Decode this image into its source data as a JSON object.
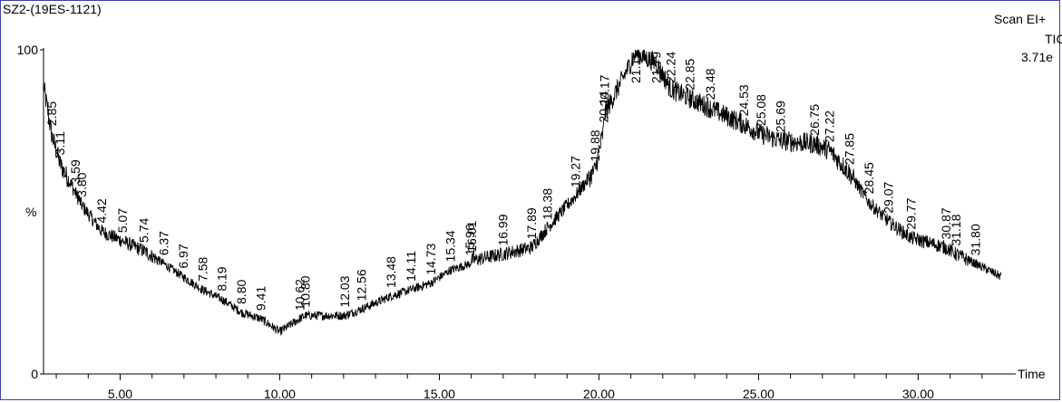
{
  "header": {
    "sample_name": "SZ2-(19ES-1121)",
    "scan_mode": "Scan EI+",
    "trace": "TIC",
    "intensity": "3.71e"
  },
  "chart_data": {
    "type": "line",
    "title": "SZ2-(19ES-1121)",
    "xlabel": "Time",
    "ylabel": "%",
    "xlim": [
      2.6,
      33.0
    ],
    "ylim": [
      0,
      100
    ],
    "x_ticks": [
      "5.00",
      "10.00",
      "15.00",
      "20.00",
      "25.00",
      "30.00"
    ],
    "y_ticks": [
      "0",
      "100"
    ],
    "grid": false,
    "legend": "none",
    "color": "#000000",
    "series": [
      {
        "x": [
          2.6,
          2.85,
          3.11,
          3.59,
          3.8,
          4.42,
          5.07,
          5.74,
          6.37,
          6.97,
          7.58,
          8.19,
          8.8,
          9.41,
          10.0,
          10.62,
          10.8,
          12.03,
          12.56,
          13.48,
          14.11,
          14.73,
          15.34,
          15.96,
          16.01,
          16.99,
          17.89,
          18.38,
          19.27,
          19.88,
          20.14,
          20.17,
          21.15,
          21.79,
          22.24,
          22.85,
          23.48,
          24.53,
          25.08,
          25.69,
          26.75,
          27.22,
          27.85,
          28.45,
          29.07,
          29.77,
          30.87,
          31.18,
          31.8,
          32.6
        ],
        "y": [
          89,
          74,
          65,
          56,
          52,
          44,
          41,
          38,
          34,
          30,
          26,
          23,
          19,
          17,
          13,
          17,
          18,
          18,
          20,
          24,
          26,
          28,
          32,
          34,
          35,
          37,
          39,
          45,
          55,
          63,
          75,
          80,
          99,
          96,
          88,
          85,
          82,
          77,
          74,
          72,
          71,
          69,
          62,
          53,
          47,
          42,
          39,
          37,
          34,
          30
        ]
      }
    ],
    "peak_labels": [
      "2.85",
      "3.11",
      "3.59",
      "3.80",
      "4.42",
      "5.07",
      "5.74",
      "6.37",
      "6.97",
      "7.58",
      "8.19",
      "8.80",
      "9.41",
      "10.62",
      "10.80",
      "12.03",
      "12.56",
      "13.48",
      "14.11",
      "14.73",
      "15.34",
      "15.96",
      "16.01",
      "16.99",
      "17.89",
      "18.38",
      "19.27",
      "19.88",
      "20.14",
      "20.17",
      "21.15",
      "21.79",
      "22.24",
      "22.85",
      "23.48",
      "24.53",
      "25.08",
      "25.69",
      "26.75",
      "27.22",
      "27.85",
      "28.45",
      "29.07",
      "29.77",
      "30.87",
      "31.18",
      "31.80"
    ]
  }
}
